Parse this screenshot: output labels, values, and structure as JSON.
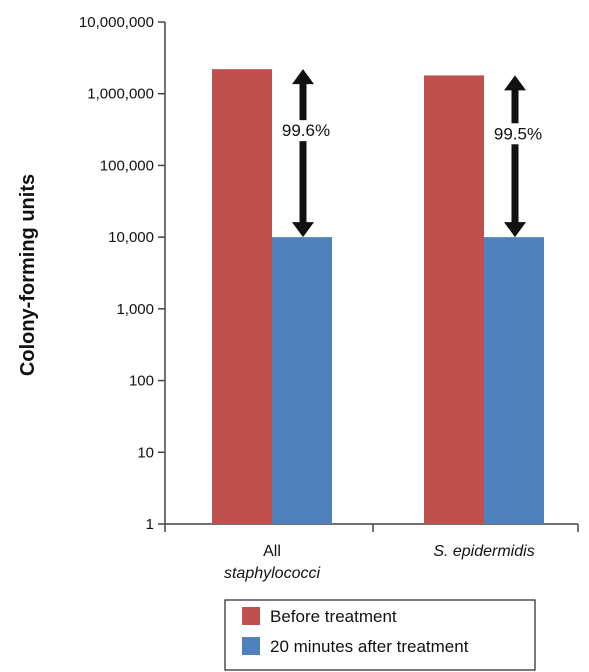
{
  "chart_data": {
    "type": "bar",
    "title": "",
    "xlabel": "",
    "ylabel": "Colony-forming units",
    "yscale": "log",
    "ylim": [
      1,
      10000000
    ],
    "yticks": [
      1,
      10,
      100,
      1000,
      10000,
      100000,
      1000000,
      10000000
    ],
    "ytick_labels": [
      "1",
      "10",
      "100",
      "1,000",
      "10,000",
      "100,000",
      "1,000,000",
      "10,000,000"
    ],
    "categories": [
      {
        "line1": "All",
        "line2": "staphylococci",
        "italic_line1": false,
        "italic_line2": true
      },
      {
        "line1": "S. epidermidis",
        "line2": "",
        "italic_line1": true,
        "italic_line2": false
      }
    ],
    "series": [
      {
        "name": "Before treatment",
        "color": "#c0504d",
        "values": [
          2200000,
          1800000
        ]
      },
      {
        "name": "20 minutes after treatment",
        "color": "#4f81bd",
        "values": [
          10000,
          10000
        ]
      }
    ],
    "annotations": [
      {
        "category_index": 0,
        "text": "99.6%",
        "from": 2200000,
        "to": 10000
      },
      {
        "category_index": 1,
        "text": "99.5%",
        "from": 1800000,
        "to": 10000
      }
    ],
    "legend": {
      "position": "bottom-right"
    },
    "grid": false
  }
}
